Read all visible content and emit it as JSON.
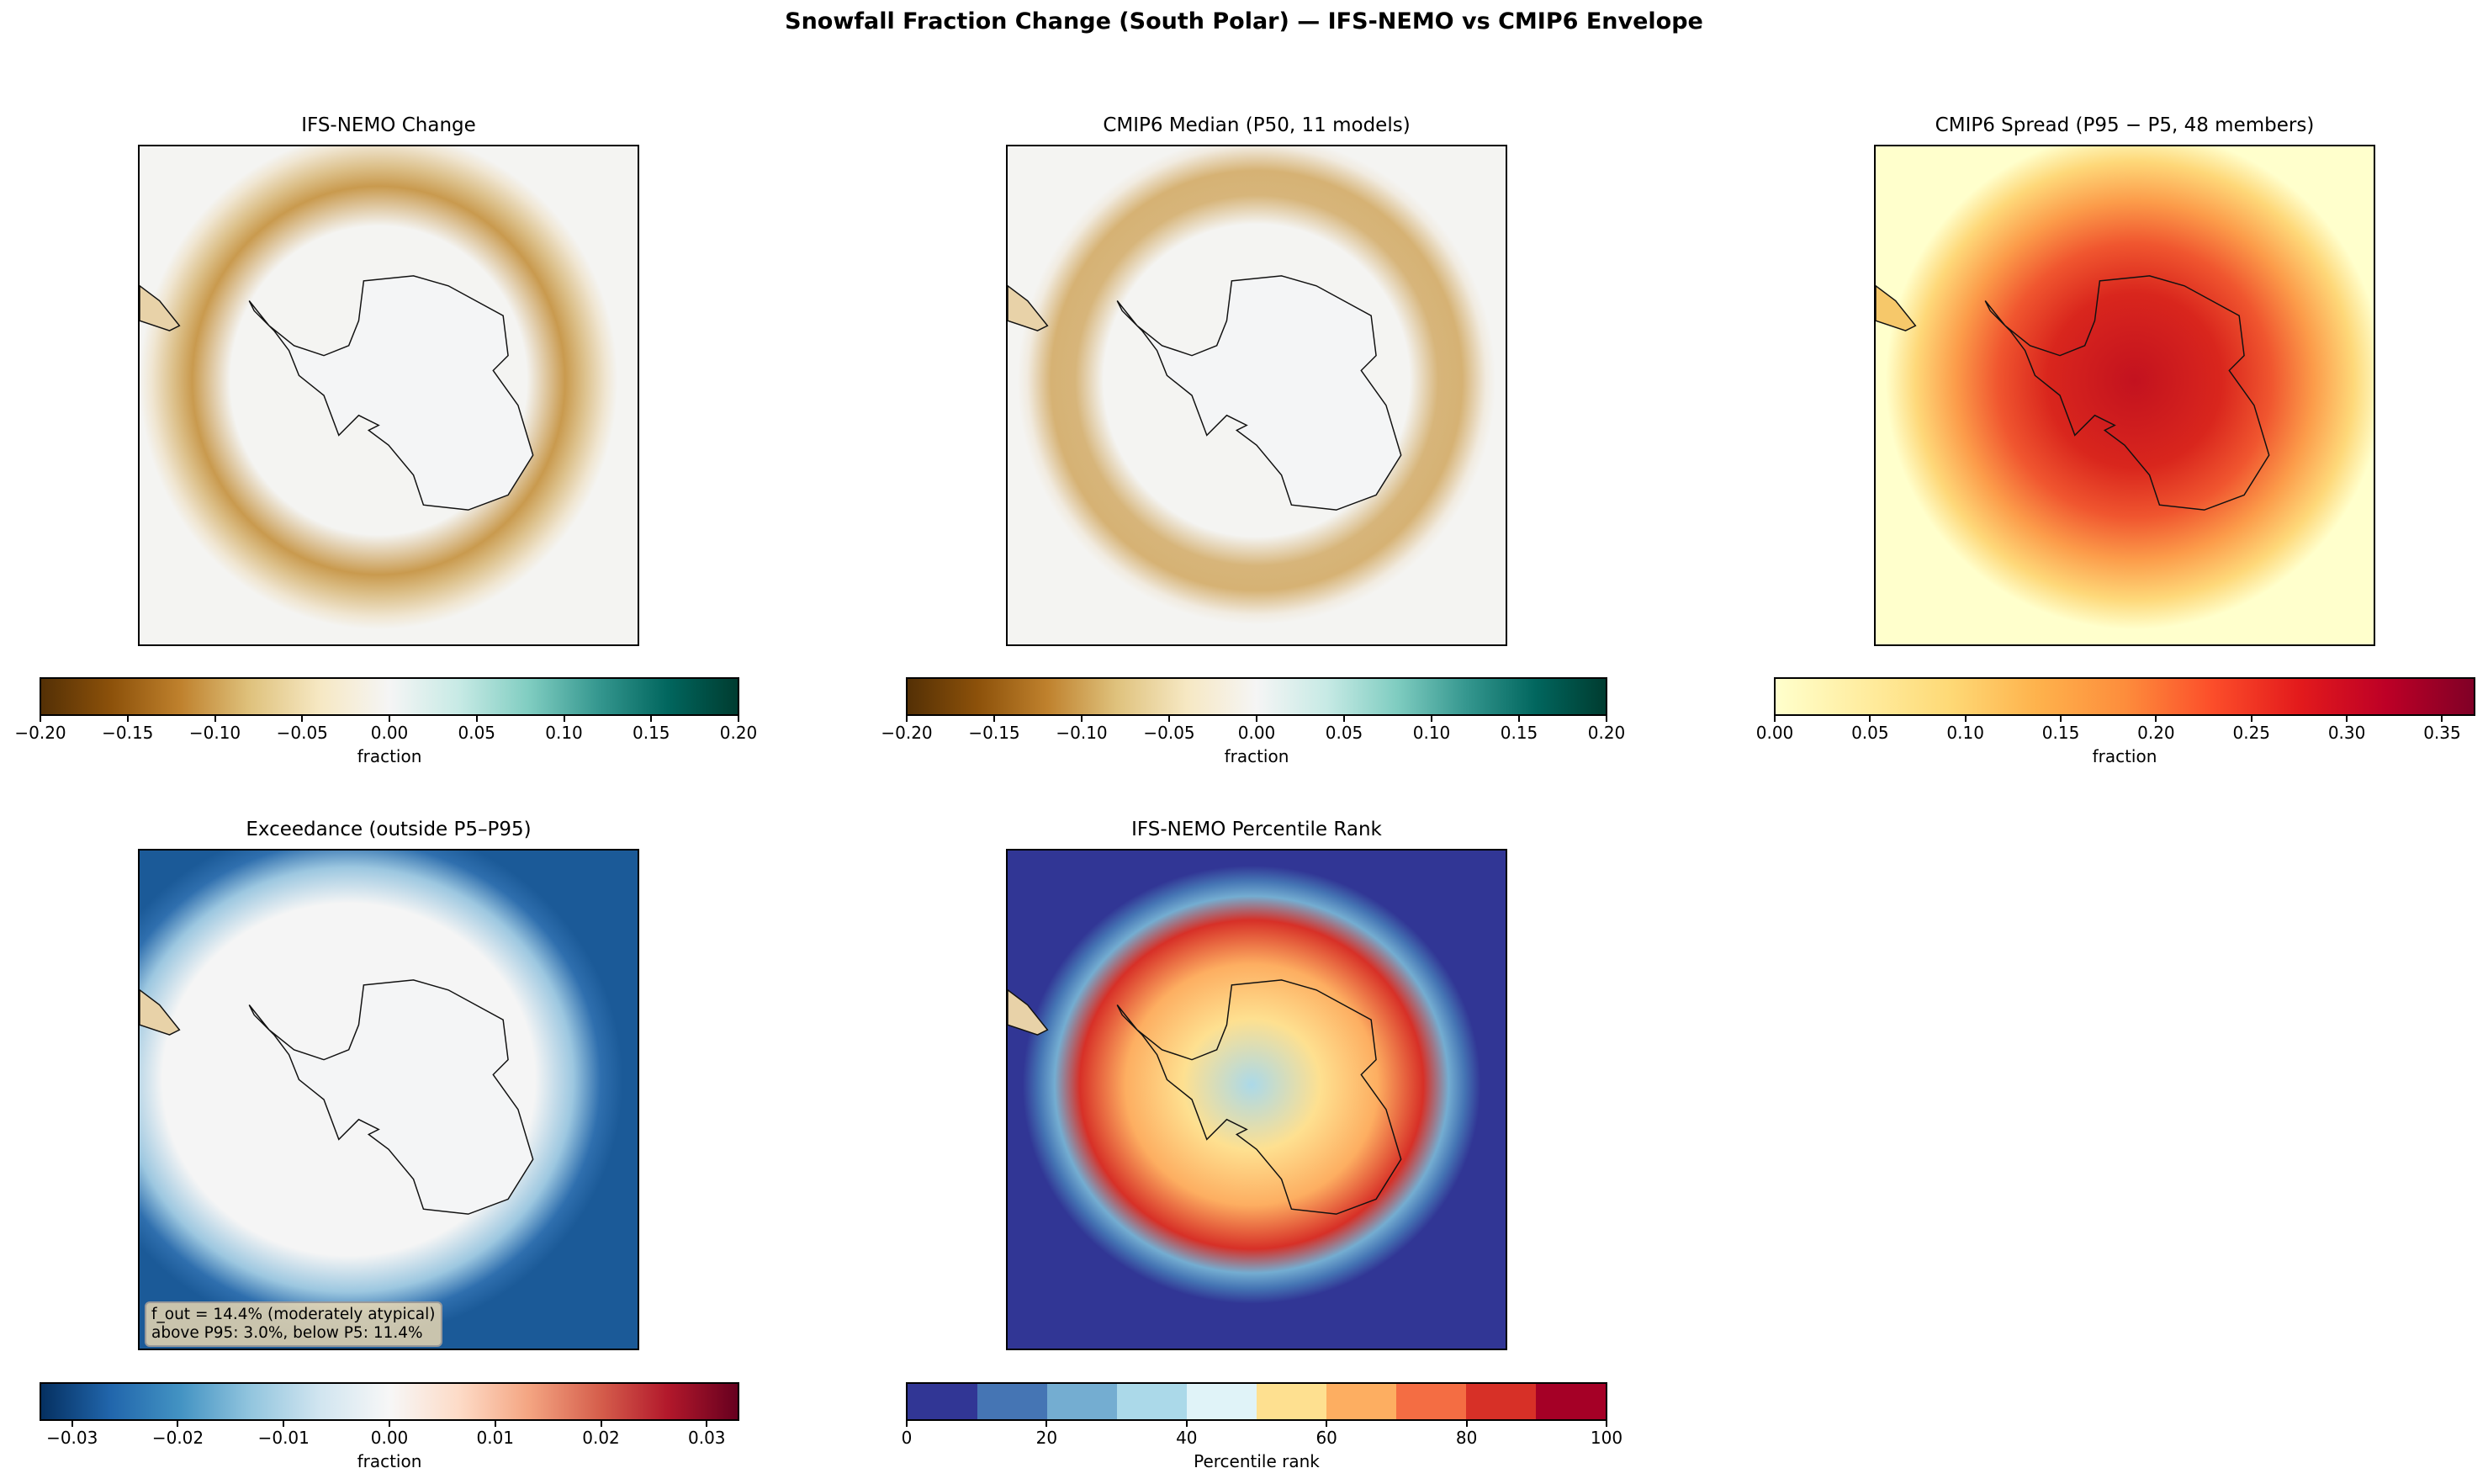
{
  "title": "Snowfall Fraction Change (South Polar) — IFS-NEMO vs CMIP6 Envelope",
  "chart_data": [
    {
      "type": "heatmap",
      "title": "IFS-NEMO Change",
      "colormap": "BrBG",
      "clim": [
        -0.2,
        0.2
      ],
      "colorbar": {
        "label": "fraction",
        "ticks": [
          "−0.20",
          "−0.15",
          "−0.10",
          "−0.05",
          "0.00",
          "0.05",
          "0.10",
          "0.15",
          "0.20"
        ],
        "tick_values": [
          -0.2,
          -0.15,
          -0.1,
          -0.05,
          0,
          0.05,
          0.1,
          0.15,
          0.2
        ]
      },
      "colors": [
        "#543005",
        "#8c510a",
        "#bf812d",
        "#dfc27d",
        "#f6e8c3",
        "#f5f5f5",
        "#c7eae5",
        "#80cdc1",
        "#35978f",
        "#01665e",
        "#003c30"
      ]
    },
    {
      "type": "heatmap",
      "title": "CMIP6 Median (P50, 11 models)",
      "colormap": "BrBG",
      "clim": [
        -0.2,
        0.2
      ],
      "colorbar": {
        "label": "fraction",
        "ticks": [
          "−0.20",
          "−0.15",
          "−0.10",
          "−0.05",
          "0.00",
          "0.05",
          "0.10",
          "0.15",
          "0.20"
        ],
        "tick_values": [
          -0.2,
          -0.15,
          -0.1,
          -0.05,
          0,
          0.05,
          0.1,
          0.15,
          0.2
        ]
      },
      "colors": [
        "#543005",
        "#8c510a",
        "#bf812d",
        "#dfc27d",
        "#f6e8c3",
        "#f5f5f5",
        "#c7eae5",
        "#80cdc1",
        "#35978f",
        "#01665e",
        "#003c30"
      ]
    },
    {
      "type": "heatmap",
      "title": "CMIP6 Spread (P95 − P5, 48 members)",
      "colormap": "YlOrRd",
      "clim": [
        0,
        0.367
      ],
      "colorbar": {
        "label": "fraction",
        "ticks": [
          "0.00",
          "0.05",
          "0.10",
          "0.15",
          "0.20",
          "0.25",
          "0.30",
          "0.35"
        ],
        "tick_values": [
          0,
          0.05,
          0.1,
          0.15,
          0.2,
          0.25,
          0.3,
          0.35
        ]
      },
      "colors": [
        "#ffffcc",
        "#ffeda0",
        "#fed976",
        "#feb24c",
        "#fd8d3c",
        "#fc4e2a",
        "#e31a1c",
        "#bd0026",
        "#800026"
      ]
    },
    {
      "type": "heatmap",
      "title": "Exceedance (outside P5–P95)",
      "colormap": "RdBu_r",
      "clim": [
        -0.033,
        0.033
      ],
      "colorbar": {
        "label": "fraction",
        "ticks": [
          "−0.03",
          "−0.02",
          "−0.01",
          "0.00",
          "0.01",
          "0.02",
          "0.03"
        ],
        "tick_values": [
          -0.03,
          -0.02,
          -0.01,
          0,
          0.01,
          0.02,
          0.03
        ]
      },
      "colors": [
        "#053061",
        "#2166ac",
        "#4393c3",
        "#92c5de",
        "#d1e5f0",
        "#f7f7f7",
        "#fddbc7",
        "#f4a582",
        "#d6604d",
        "#b2182b",
        "#67001f"
      ],
      "annotation": {
        "line1": "f_out = 14.4% (moderately atypical)",
        "line2": "above P95: 3.0%, below P5: 11.4%"
      }
    },
    {
      "type": "heatmap",
      "title": "IFS-NEMO Percentile Rank",
      "colormap": "RdYlBu_r (discrete, 10 bins)",
      "clim": [
        0,
        100
      ],
      "colorbar": {
        "label": "Percentile rank",
        "ticks": [
          "0",
          "20",
          "40",
          "60",
          "80",
          "100"
        ],
        "tick_values": [
          0,
          20,
          40,
          60,
          80,
          100
        ]
      },
      "colors": [
        "#313695",
        "#4575b4",
        "#74add1",
        "#abd9e9",
        "#e0f3f8",
        "#fee090",
        "#fdae61",
        "#f46d43",
        "#d73027",
        "#a50026"
      ],
      "discrete": true
    }
  ]
}
